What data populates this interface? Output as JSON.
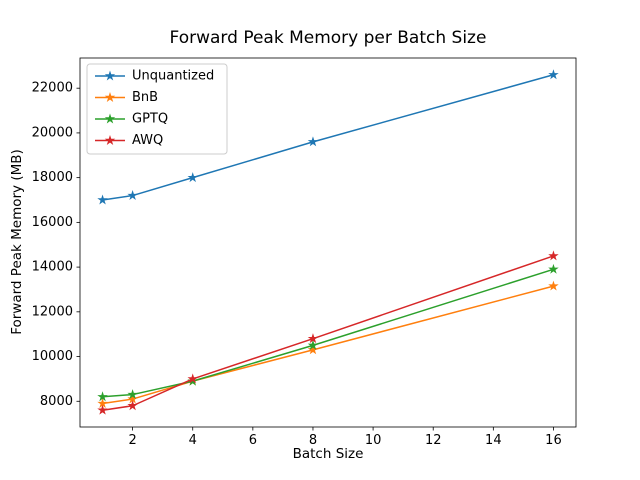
{
  "chart_data": {
    "type": "line",
    "title": "Forward Peak Memory per Batch Size",
    "xlabel": "Batch Size",
    "ylabel": "Forward Peak Memory (MB)",
    "x": [
      1,
      2,
      4,
      8,
      16
    ],
    "series": [
      {
        "name": "Unquantized",
        "color": "#1f77b4",
        "values": [
          17000,
          17200,
          18000,
          19600,
          22600
        ]
      },
      {
        "name": "BnB",
        "color": "#ff7f0e",
        "values": [
          7900,
          8100,
          8900,
          10300,
          13150
        ]
      },
      {
        "name": "GPTQ",
        "color": "#2ca02c",
        "values": [
          8200,
          8300,
          8900,
          10500,
          13900
        ]
      },
      {
        "name": "AWQ",
        "color": "#d62728",
        "values": [
          7600,
          7800,
          9000,
          10800,
          14500
        ]
      }
    ],
    "marker": "star",
    "xlim": [
      0.25,
      16.75
    ],
    "ylim": [
      6850,
      23350
    ],
    "xticks": [
      2,
      4,
      6,
      8,
      10,
      12,
      14,
      16
    ],
    "yticks": [
      8000,
      10000,
      12000,
      14000,
      16000,
      18000,
      20000,
      22000
    ],
    "grid": false,
    "legend_position": "upper left",
    "axis_color": "#000000",
    "background": "#ffffff"
  }
}
